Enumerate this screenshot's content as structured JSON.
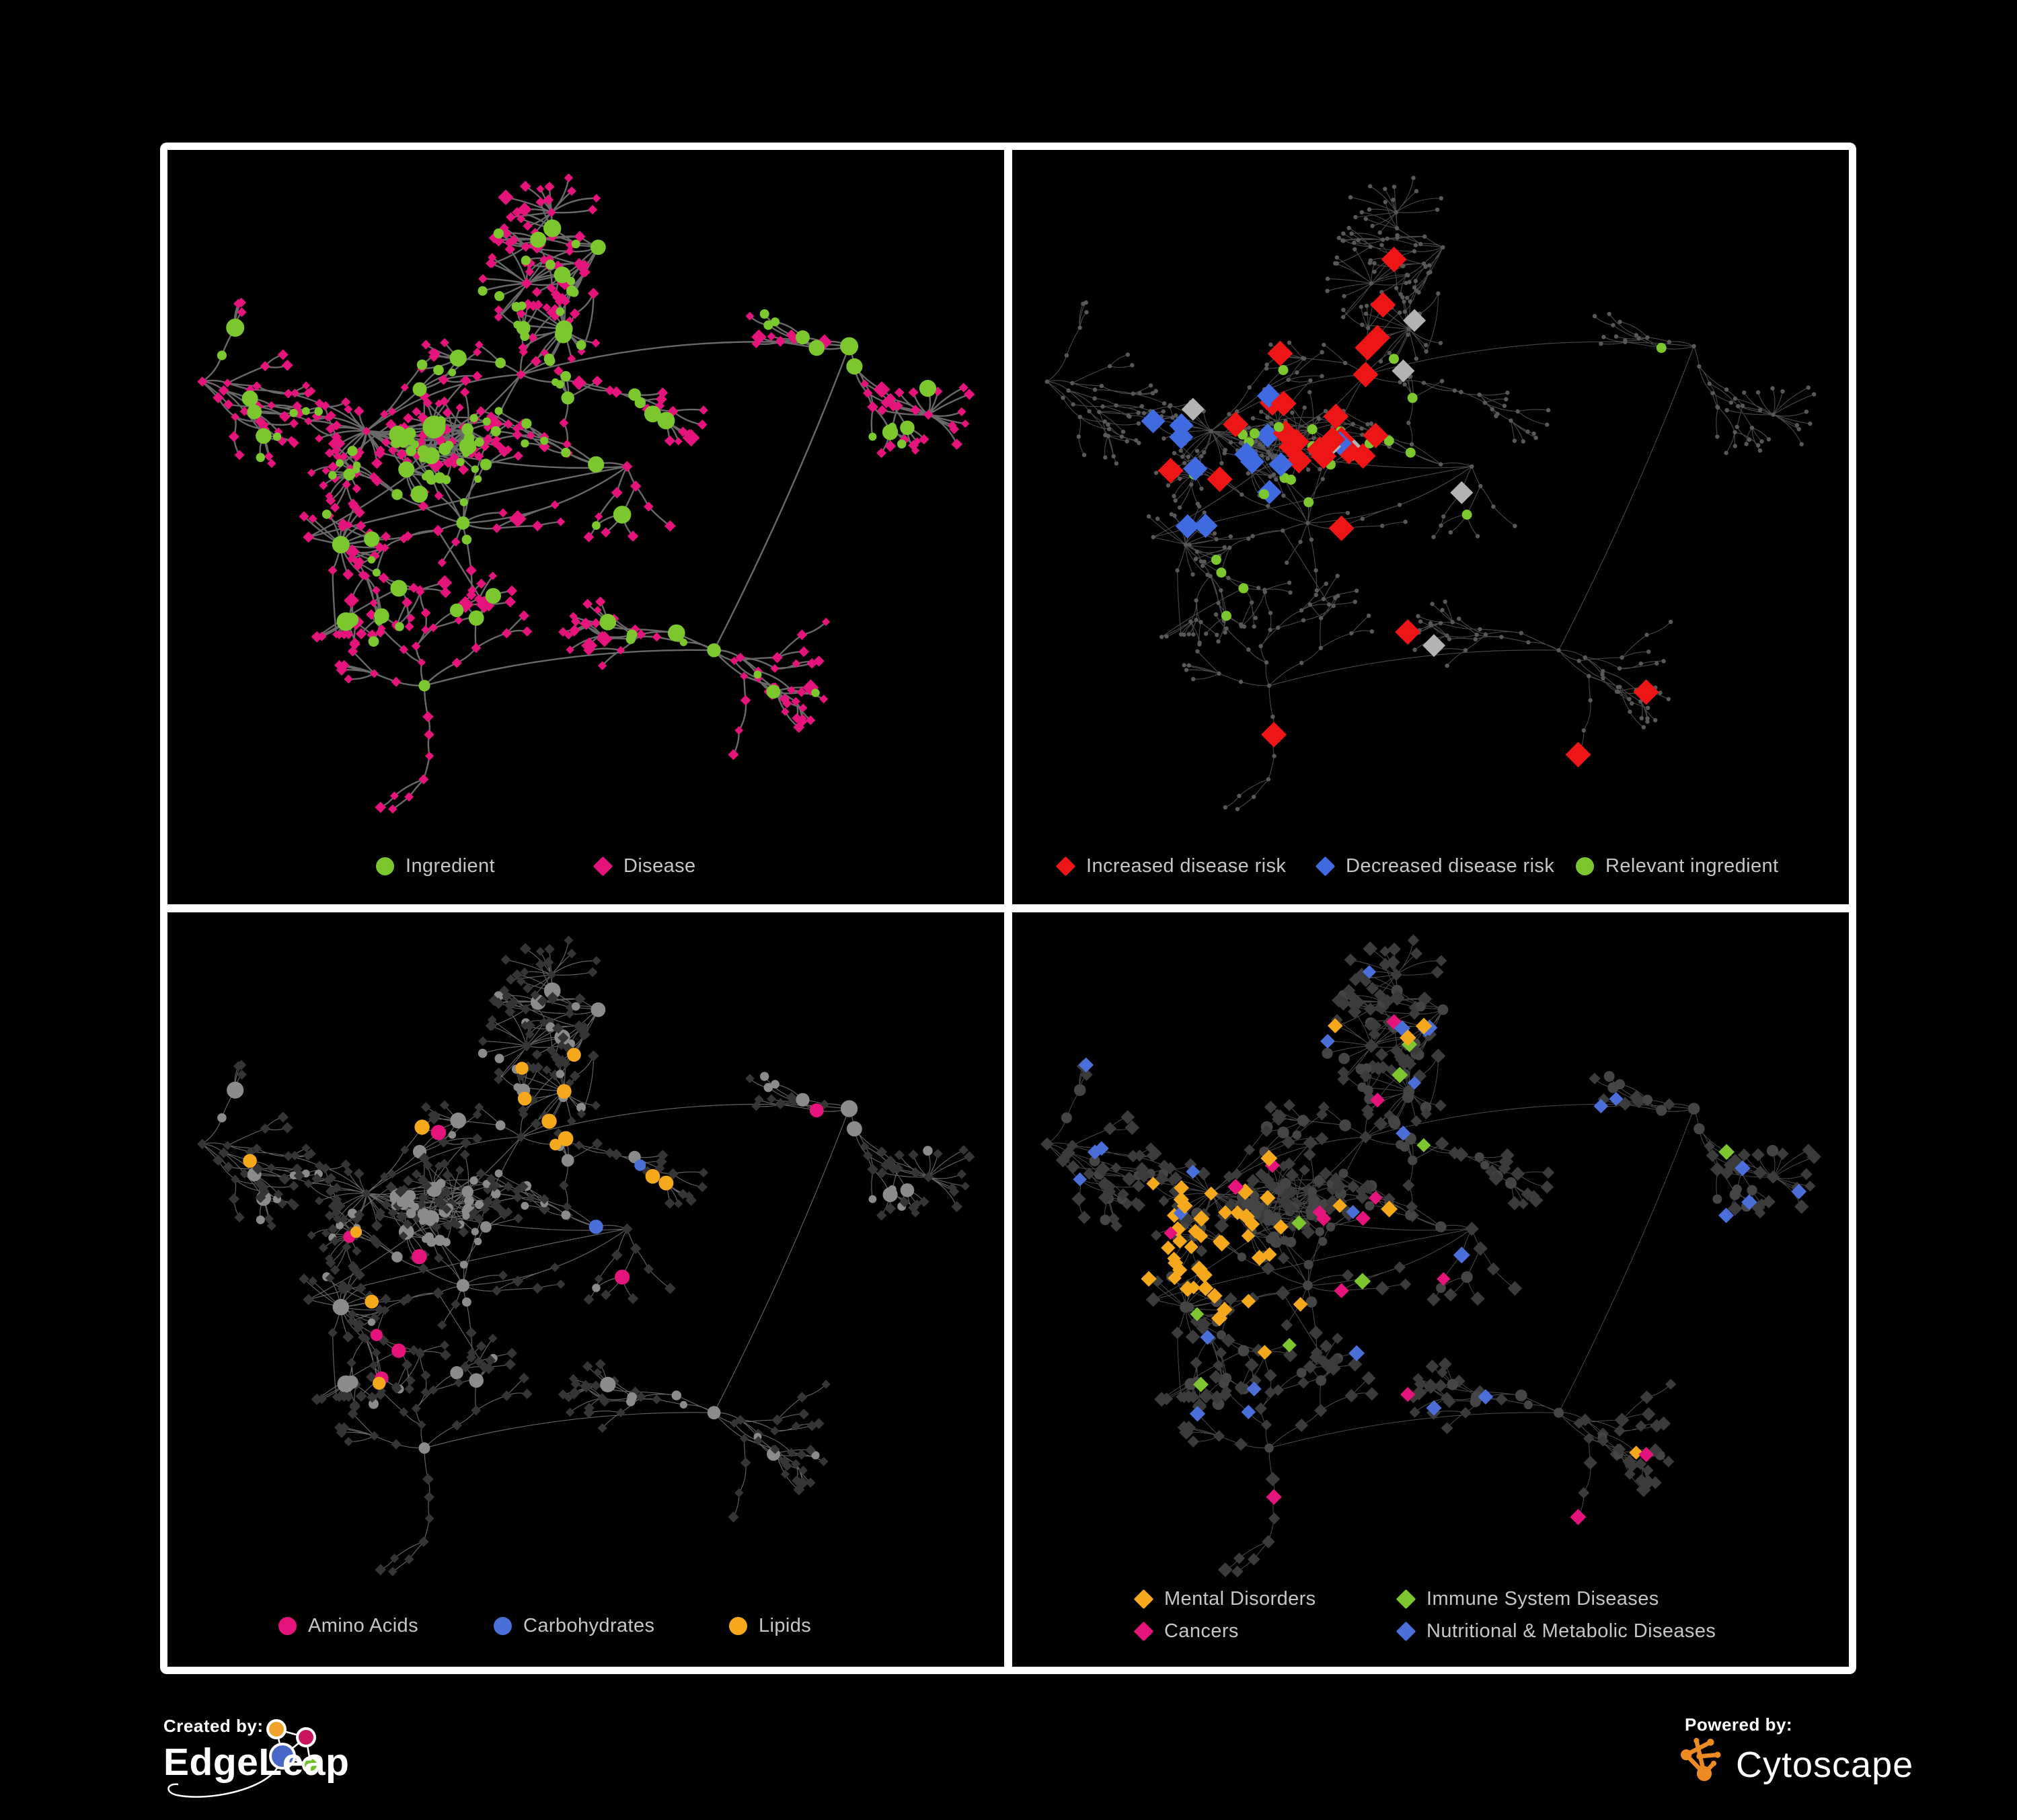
{
  "page": {
    "background": "#000000",
    "frame_color": "#ffffff"
  },
  "branding": {
    "created_by_label": "Created by:",
    "created_by_name": "EdgeLeap",
    "powered_by_label": "Powered by:",
    "powered_by_name": "Cytoscape",
    "edgeleap_logo_colors": {
      "orange": "#f0a22a",
      "magenta": "#c8155e",
      "blue": "#4a68c8",
      "green": "#72bf2e",
      "outline": "#ffffff"
    },
    "cytoscape_logo_color": "#ee8a22"
  },
  "panels": [
    {
      "id": "ingredient-disease",
      "legend": [
        {
          "shape": "circle",
          "color": "#7cc72e",
          "label": "Ingredient"
        },
        {
          "shape": "diamond",
          "color": "#e5137c",
          "label": "Disease"
        }
      ],
      "colors": {
        "edge": "#6f6f6f",
        "ingredient": "#7cc72e",
        "disease": "#e5137c"
      }
    },
    {
      "id": "disease-risk",
      "legend": [
        {
          "shape": "diamond",
          "color": "#ed1515",
          "label": "Increased disease risk"
        },
        {
          "shape": "diamond",
          "color": "#3f6ae0",
          "label": "Decreased disease risk"
        },
        {
          "shape": "circle",
          "color": "#7cc72e",
          "label": "Relevant ingredient"
        }
      ],
      "colors": {
        "edge": "#5a5a5a",
        "base": "#585858",
        "increased": "#ed1515",
        "decreased": "#3f6ae0",
        "neutral": "#b3b3b3",
        "ingredient": "#7cc72e"
      }
    },
    {
      "id": "nutrient-classes",
      "legend": [
        {
          "shape": "circle",
          "color": "#e5137c",
          "label": "Amino Acids"
        },
        {
          "shape": "circle",
          "color": "#4a6fd8",
          "label": "Carbohydrates"
        },
        {
          "shape": "circle",
          "color": "#f5a81c",
          "label": "Lipids"
        }
      ],
      "colors": {
        "edge": "#8f8f8f",
        "disease": "#353535",
        "ingredient": "#8b8b8b",
        "amino": "#e5137c",
        "carbohydrate": "#4a6fd8",
        "lipid": "#f5a81c"
      }
    },
    {
      "id": "disease-classes",
      "legend": [
        {
          "shape": "diamond",
          "color": "#f5a81c",
          "label": "Mental Disorders"
        },
        {
          "shape": "diamond",
          "color": "#7dc62f",
          "label": "Immune System Diseases"
        },
        {
          "shape": "diamond",
          "color": "#e5137c",
          "label": "Cancers"
        },
        {
          "shape": "diamond",
          "color": "#4a6fd8",
          "label": "Nutritional & Metabolic Diseases"
        }
      ],
      "colors": {
        "edge": "#7b7b7b",
        "base": "#3b3b3b",
        "hub": "#454545",
        "mental": "#f5a81c",
        "immune": "#7dc62f",
        "cancer": "#e5137c",
        "nutritional": "#4a6fd8"
      }
    }
  ]
}
